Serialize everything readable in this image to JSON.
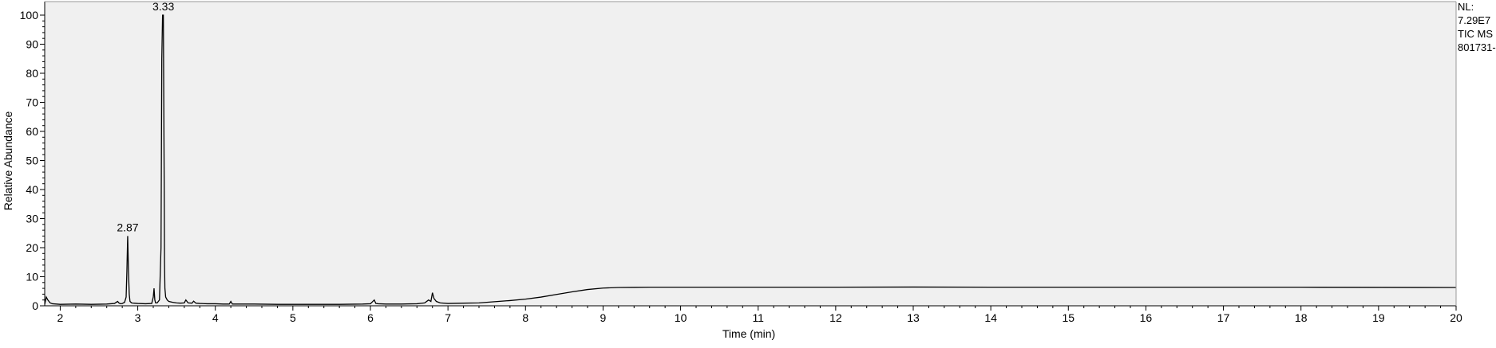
{
  "chart_data": {
    "type": "line",
    "xlabel": "Time (min)",
    "ylabel": "Relative Abundance",
    "xlim": [
      1.8,
      20
    ],
    "ylim": [
      0,
      100
    ],
    "x_ticks": [
      2,
      3,
      4,
      5,
      6,
      7,
      8,
      9,
      10,
      11,
      12,
      13,
      14,
      15,
      16,
      17,
      18,
      19,
      20
    ],
    "y_ticks": [
      0,
      10,
      20,
      30,
      40,
      50,
      60,
      70,
      80,
      90,
      100
    ],
    "grid": false,
    "background": "#f0f0f0",
    "line_color": "#000000",
    "annotations": [
      {
        "x": 2.87,
        "y": 24,
        "label": "2.87"
      },
      {
        "x": 3.33,
        "y": 100,
        "label": "3.33"
      }
    ],
    "side_info": [
      "NL:",
      "7.29E7",
      "TIC  MS",
      "801731-"
    ],
    "series": [
      {
        "x": [
          1.8,
          1.82,
          1.84,
          1.87,
          1.9,
          1.95,
          2.0,
          2.2,
          2.4,
          2.6,
          2.7,
          2.74,
          2.76,
          2.78,
          2.8,
          2.83,
          2.85,
          2.86,
          2.87,
          2.88,
          2.89,
          2.9,
          2.92,
          2.95,
          3.0,
          3.1,
          3.18,
          3.2,
          3.21,
          3.22,
          3.23,
          3.25,
          3.28,
          3.3,
          3.31,
          3.32,
          3.33,
          3.34,
          3.345,
          3.35,
          3.36,
          3.38,
          3.4,
          3.45,
          3.5,
          3.55,
          3.6,
          3.62,
          3.65,
          3.7,
          3.72,
          3.75,
          3.8,
          3.9,
          4.0,
          4.1,
          4.18,
          4.2,
          4.22,
          4.3,
          4.5,
          4.8,
          5.0,
          5.3,
          5.6,
          5.9,
          6.0,
          6.05,
          6.07,
          6.1,
          6.2,
          6.4,
          6.6,
          6.7,
          6.75,
          6.78,
          6.8,
          6.82,
          6.85,
          6.9,
          7.0,
          7.2,
          7.4,
          7.5,
          7.6,
          7.8,
          8.0,
          8.2,
          8.4,
          8.6,
          8.8,
          9.0,
          9.2,
          9.4,
          9.6,
          10.0,
          11.0,
          12.0,
          13.0,
          14.0,
          15.0,
          16.0,
          17.0,
          18.0,
          19.0,
          20.0
        ],
        "y": [
          0.5,
          3.0,
          2.0,
          1.0,
          0.7,
          0.6,
          0.5,
          0.6,
          0.5,
          0.6,
          0.8,
          1.5,
          0.9,
          0.7,
          0.8,
          1.2,
          3.0,
          12.0,
          24.0,
          12.0,
          4.0,
          1.5,
          1.0,
          0.9,
          0.8,
          0.7,
          0.8,
          3.0,
          6.0,
          2.0,
          1.0,
          1.0,
          2.0,
          20.0,
          85.0,
          100.0,
          100.0,
          46.0,
          15.0,
          6.0,
          3.0,
          2.0,
          1.5,
          1.2,
          1.0,
          0.9,
          1.0,
          2.0,
          1.0,
          0.9,
          1.6,
          0.9,
          0.8,
          0.7,
          0.7,
          0.6,
          0.6,
          1.5,
          0.6,
          0.6,
          0.6,
          0.5,
          0.5,
          0.5,
          0.5,
          0.6,
          0.7,
          2.0,
          0.8,
          0.7,
          0.6,
          0.6,
          0.7,
          1.0,
          2.0,
          1.5,
          4.5,
          2.5,
          1.5,
          1.0,
          0.8,
          0.9,
          1.0,
          1.2,
          1.4,
          1.8,
          2.3,
          3.0,
          3.9,
          4.8,
          5.6,
          6.1,
          6.3,
          6.35,
          6.4,
          6.4,
          6.4,
          6.4,
          6.45,
          6.4,
          6.4,
          6.4,
          6.4,
          6.4,
          6.35,
          6.3
        ]
      }
    ]
  }
}
